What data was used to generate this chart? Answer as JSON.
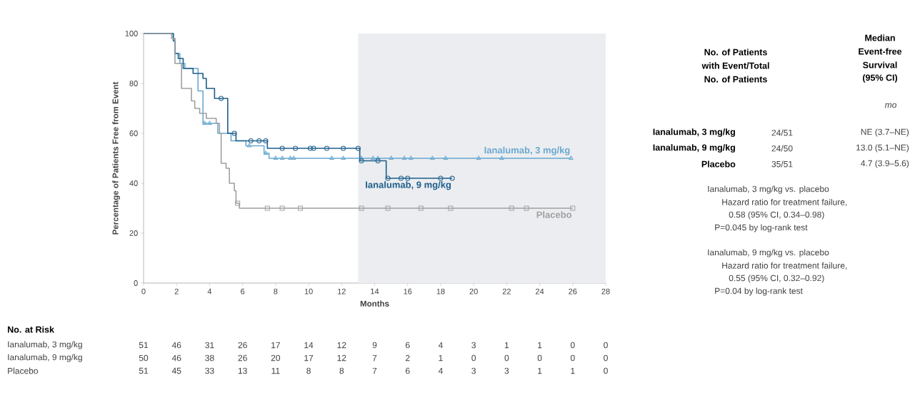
{
  "chart_data": {
    "type": "step",
    "xlabel": "Months",
    "ylabel": "Percentage of Patients Free from Event",
    "xlim": [
      0,
      28
    ],
    "xticks": [
      0,
      2,
      4,
      6,
      8,
      10,
      12,
      14,
      16,
      18,
      20,
      22,
      24,
      26,
      28
    ],
    "ylim": [
      0,
      100
    ],
    "yticks": [
      0,
      20,
      40,
      60,
      80,
      100
    ],
    "bands": [
      {
        "axis": "x",
        "from": 13,
        "to": 28,
        "color": "#ebedf0"
      }
    ],
    "series": [
      {
        "name": "Ianalumab, 3 mg/kg",
        "color": "#6aa8d0",
        "marker": "none",
        "x": [
          0,
          1.8,
          1.9,
          2.2,
          2.5,
          3.3,
          3.6,
          4.5,
          5.3,
          6.2,
          7.3,
          7.6,
          25.9
        ],
        "values": [
          100,
          98,
          92,
          88,
          86,
          77,
          64,
          60,
          57,
          55,
          52,
          50,
          50
        ]
      },
      {
        "name": "Ianalumab, 9 mg/kg",
        "color": "#1e5f8c",
        "marker": "none",
        "x": [
          0,
          1.8,
          1.9,
          2.1,
          2.4,
          3.0,
          3.6,
          3.8,
          4.3,
          5.1,
          5.6,
          7.5,
          13.1,
          14.7,
          18.7
        ],
        "values": [
          100,
          97,
          92,
          90,
          86,
          84,
          82,
          78,
          74,
          60,
          57,
          54,
          49,
          42,
          42
        ]
      },
      {
        "name": "Placebo",
        "color": "#a0a0a0",
        "marker": "none",
        "x": [
          0,
          1.7,
          1.9,
          2.3,
          2.9,
          3.1,
          3.4,
          3.8,
          4.4,
          4.6,
          4.7,
          5.0,
          5.2,
          5.5,
          5.6,
          5.8,
          26.0
        ],
        "values": [
          100,
          98,
          88,
          78,
          73,
          70,
          68,
          66,
          64,
          60,
          48,
          46,
          40,
          37,
          32,
          30,
          30
        ]
      },
      {
        "type": "scatter",
        "color": "#6aa8d0",
        "marker": "triangle",
        "x": [
          3.7,
          4.0,
          6.4,
          7.4,
          8.0,
          8.4,
          8.9,
          9.1,
          11.4,
          12.1,
          13.2,
          13.9,
          14.2,
          15.0,
          15.8,
          16.2,
          17.5,
          18.3,
          20.3,
          21.7,
          25.9
        ],
        "values": [
          64,
          64,
          55,
          52,
          50,
          50,
          50,
          50,
          50,
          50,
          50,
          50,
          50,
          50,
          50,
          50,
          50,
          50,
          50,
          50,
          50
        ]
      },
      {
        "type": "scatter",
        "color": "#1e5f8c",
        "marker": "circle",
        "x": [
          4.7,
          5.5,
          6.5,
          7.0,
          7.4,
          8.4,
          9.2,
          10.1,
          10.3,
          11.1,
          12.1,
          13.0,
          13.2,
          14.2,
          14.8,
          15.6,
          16.0,
          18.0,
          18.7
        ],
        "values": [
          74,
          60,
          57,
          57,
          57,
          54,
          54,
          54,
          54,
          54,
          54,
          54,
          49,
          49,
          42,
          42,
          42,
          42,
          42
        ]
      },
      {
        "type": "scatter",
        "color": "#a0a0a0",
        "marker": "square",
        "x": [
          5.7,
          7.5,
          8.4,
          9.5,
          13.2,
          14.8,
          16.8,
          18.6,
          22.3,
          23.2,
          26.0
        ],
        "values": [
          32,
          30,
          30,
          30,
          30,
          30,
          30,
          30,
          30,
          30,
          30
        ]
      }
    ],
    "annotations": [
      "No. of Patients",
      "with Event/Total",
      "No. of Patients",
      "Median",
      "Event-free",
      "Survival",
      "(95% CI)",
      "mo",
      "Ianalumab, 3 mg/kg",
      "Ianalumab, 9 mg/kg",
      "Placebo",
      "24/51",
      "24/50",
      "35/51",
      "NE (3.7–NE)",
      "13.0 (5.1–NE)",
      "4.7 (3.9–5.6)",
      "Ianalumab, 3 mg/kg vs. placebo",
      "Hazard ratio for treatment failure,",
      "0.58 (95% CI, 0.34–0.98)",
      "P=0.045 by log-rank test",
      "Ianalumab, 9 mg/kg vs. placebo",
      "Hazard ratio for treatment failure,",
      "0.55 (95% CI, 0.32–0.92)",
      "P=0.04 by log-rank test",
      "No. at Risk",
      "Ianalumab, 3 mg/kg",
      "51",
      "46",
      "31",
      "26",
      "17",
      "14",
      "12",
      "9",
      "6",
      "4",
      "3",
      "1",
      "1",
      "0",
      "0",
      "Ianalumab, 9 mg/kg",
      "50",
      "46",
      "38",
      "26",
      "20",
      "17",
      "12",
      "7",
      "2",
      "1",
      "0",
      "0",
      "0",
      "0",
      "0",
      "Placebo",
      "51",
      "45",
      "33",
      "13",
      "11",
      "8",
      "8",
      "7",
      "6",
      "4",
      "3",
      "3",
      "1",
      "1",
      "0"
    ]
  }
}
